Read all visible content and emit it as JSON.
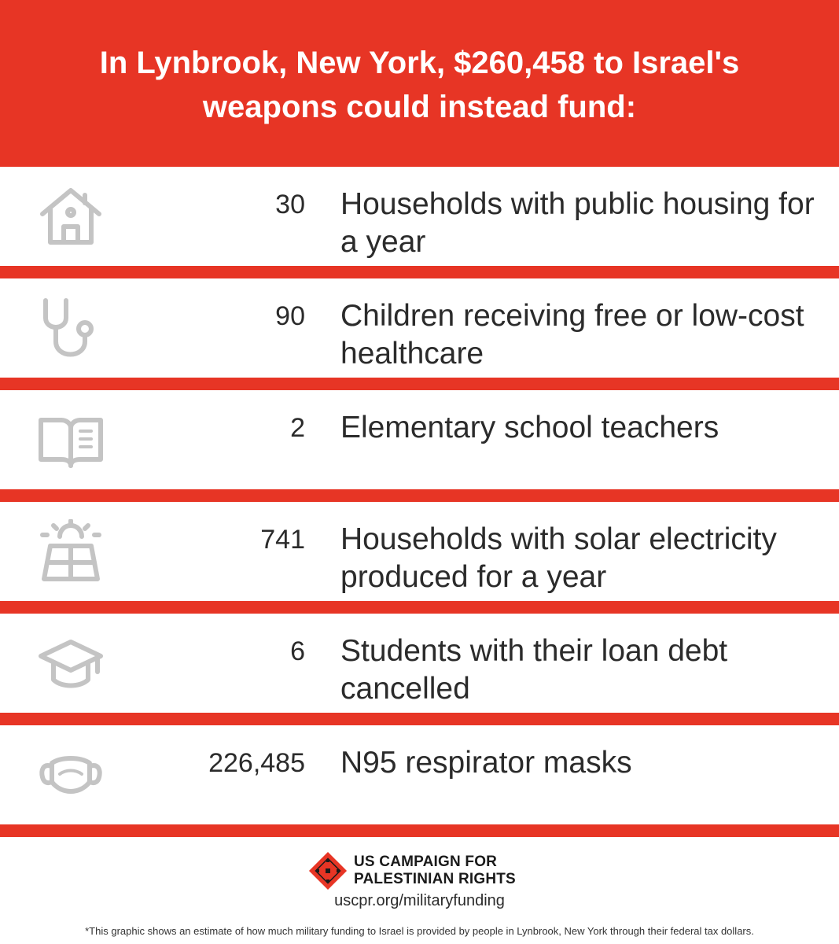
{
  "header": {
    "title": "In Lynbrook, New York, $260,458 to Israel's weapons could instead fund:"
  },
  "rows": [
    {
      "icon": "house-icon",
      "value": "30",
      "description": "Households with public housing for a year"
    },
    {
      "icon": "stethoscope-icon",
      "value": "90",
      "description": "Children receiving free or low-cost healthcare"
    },
    {
      "icon": "open-book-icon",
      "value": "2",
      "description": "Elementary school teachers"
    },
    {
      "icon": "solar-panel-icon",
      "value": "741",
      "description": "Households with solar electricity produced for a year"
    },
    {
      "icon": "graduation-cap-icon",
      "value": "6",
      "description": "Students with their loan debt cancelled"
    },
    {
      "icon": "face-mask-icon",
      "value": "226,485",
      "description": "N95 respirator masks"
    }
  ],
  "footer": {
    "logo_line1": "US CAMPAIGN FOR",
    "logo_line2": "PALESTINIAN RIGHTS",
    "url": "uscpr.org/militaryfunding",
    "note": "*This graphic shows an estimate of how much military funding to Israel is provided by people in Lynbrook, New York through their federal tax dollars."
  },
  "colors": {
    "accent": "#e73525",
    "icon": "#c4c4c4",
    "text": "#2b2b2b"
  }
}
